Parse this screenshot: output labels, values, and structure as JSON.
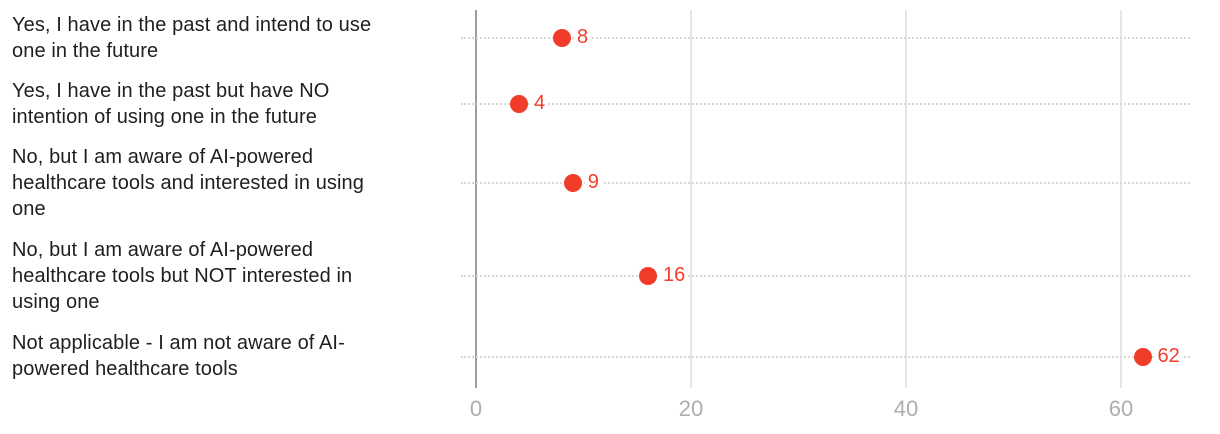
{
  "chart_data": {
    "type": "scatter",
    "variant": "dot-plot",
    "title": "",
    "xlabel": "",
    "ylabel": "",
    "legend": "none",
    "grid": "vertical gridlines on, dotted row leader lines",
    "xlim": [
      0,
      64
    ],
    "xticks": [
      0,
      20,
      40,
      60
    ],
    "categories": [
      "Yes, I have in the past and intend to use\none in the future",
      "Yes, I have in the past but have NO\nintention of using one in the future",
      "No, but I am aware of AI-powered\nhealthcare tools and interested in using\none",
      "No, but I am aware of AI-powered\nhealthcare tools but NOT interested in\nusing one",
      "Not applicable - I am not aware of AI-\npowered healthcare tools"
    ],
    "values": [
      8,
      4,
      9,
      16,
      62
    ],
    "colors": {
      "dot": "#f23c2a",
      "value_label": "#f23c2a",
      "category_label": "#1f1f1f",
      "tick_label": "#aeaeae",
      "axis_line": "#9e9e9e",
      "gridline": "#e6e6e6",
      "dotted_leader": "#d8d8d8",
      "background": "#ffffff"
    }
  }
}
